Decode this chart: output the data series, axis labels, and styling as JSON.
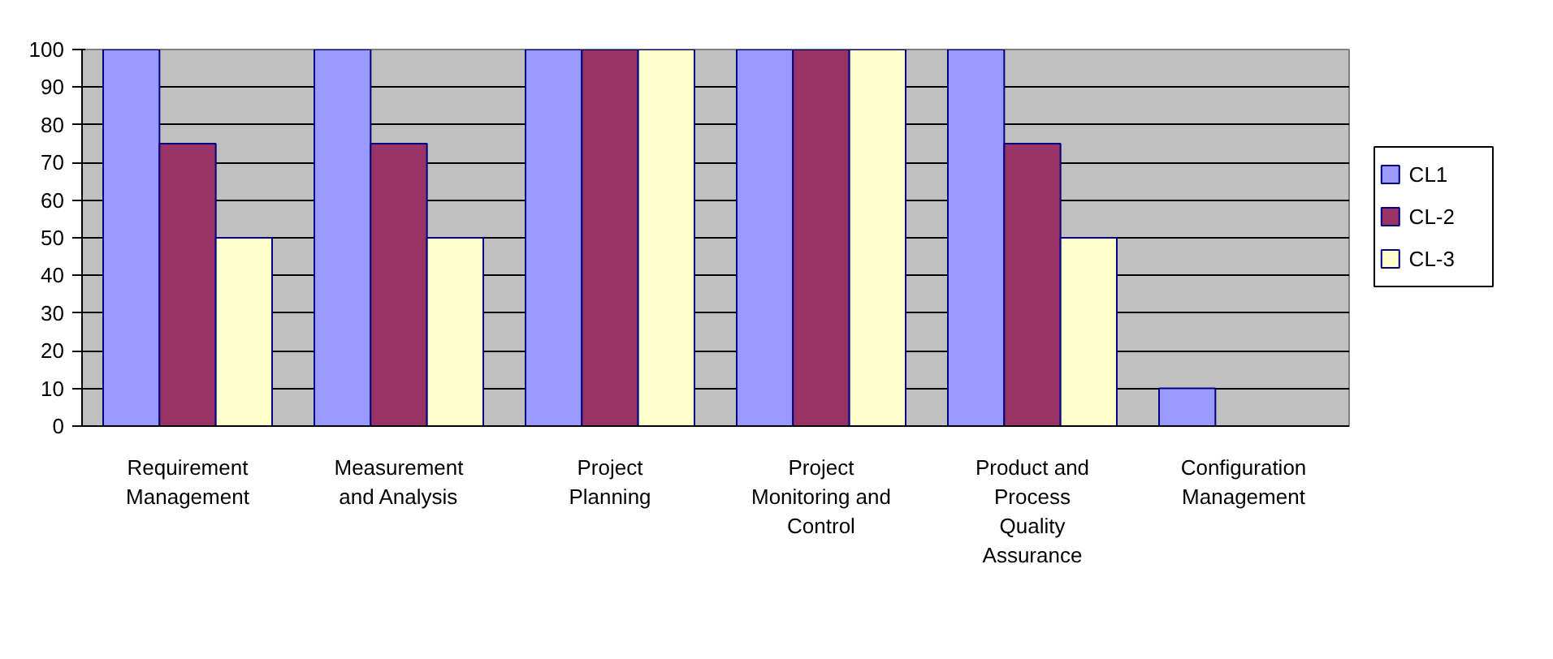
{
  "chart_data": {
    "type": "bar",
    "categories": [
      "Requirement Management",
      "Measurement and Analysis",
      "Project Planning",
      "Project Monitoring and Control",
      "Product and Process Quality Assurance",
      "Configuration Management"
    ],
    "series": [
      {
        "name": "CL1",
        "color": "#9999ff",
        "values": [
          100,
          100,
          100,
          100,
          100,
          10
        ]
      },
      {
        "name": "CL-2",
        "color": "#993366",
        "values": [
          75,
          75,
          100,
          100,
          75,
          0
        ]
      },
      {
        "name": "CL-3",
        "color": "#ffffcc",
        "values": [
          50,
          50,
          100,
          100,
          50,
          0
        ]
      }
    ],
    "ylim": [
      0,
      100
    ],
    "yticks": [
      0,
      10,
      20,
      30,
      40,
      50,
      60,
      70,
      80,
      90,
      100
    ],
    "grid": "y",
    "legend": "right"
  }
}
